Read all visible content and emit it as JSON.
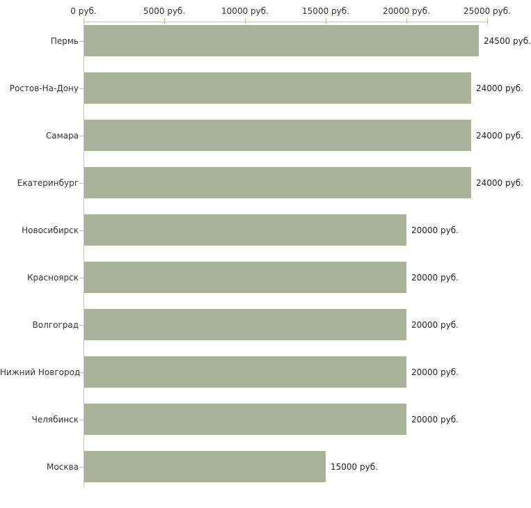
{
  "chart_data": {
    "type": "bar",
    "orientation": "horizontal",
    "title": "",
    "xlabel": "",
    "ylabel": "",
    "categories": [
      "Пермь",
      "Ростов-На-Дону",
      "Самара",
      "Екатеринбург",
      "Новосибирск",
      "Красноярск",
      "Волгоград",
      "Нижний Новгород",
      "Челябинск",
      "Москва"
    ],
    "values": [
      24500,
      24000,
      24000,
      24000,
      20000,
      20000,
      20000,
      20000,
      20000,
      15000
    ],
    "value_labels": [
      "24500 руб.",
      "24000 руб.",
      "24000 руб.",
      "24000 руб.",
      "20000 руб.",
      "20000 руб.",
      "20000 руб.",
      "20000 руб.",
      "20000 руб.",
      "15000 руб."
    ],
    "x_axis": {
      "position": "top",
      "range": [
        0,
        25000
      ],
      "ticks": [
        0,
        5000,
        10000,
        15000,
        20000,
        25000
      ],
      "tick_labels": [
        "0 руб.",
        "5000 руб.",
        "10000 руб.",
        "15000 руб.",
        "20000 руб.",
        "25000 руб."
      ]
    },
    "legend": "none",
    "grid": "off",
    "colors": {
      "bar": "#acb199",
      "axis_line": "#c2c2c2",
      "tick": "#bcbca0",
      "text": "#333333",
      "background": "#ffffff"
    }
  }
}
